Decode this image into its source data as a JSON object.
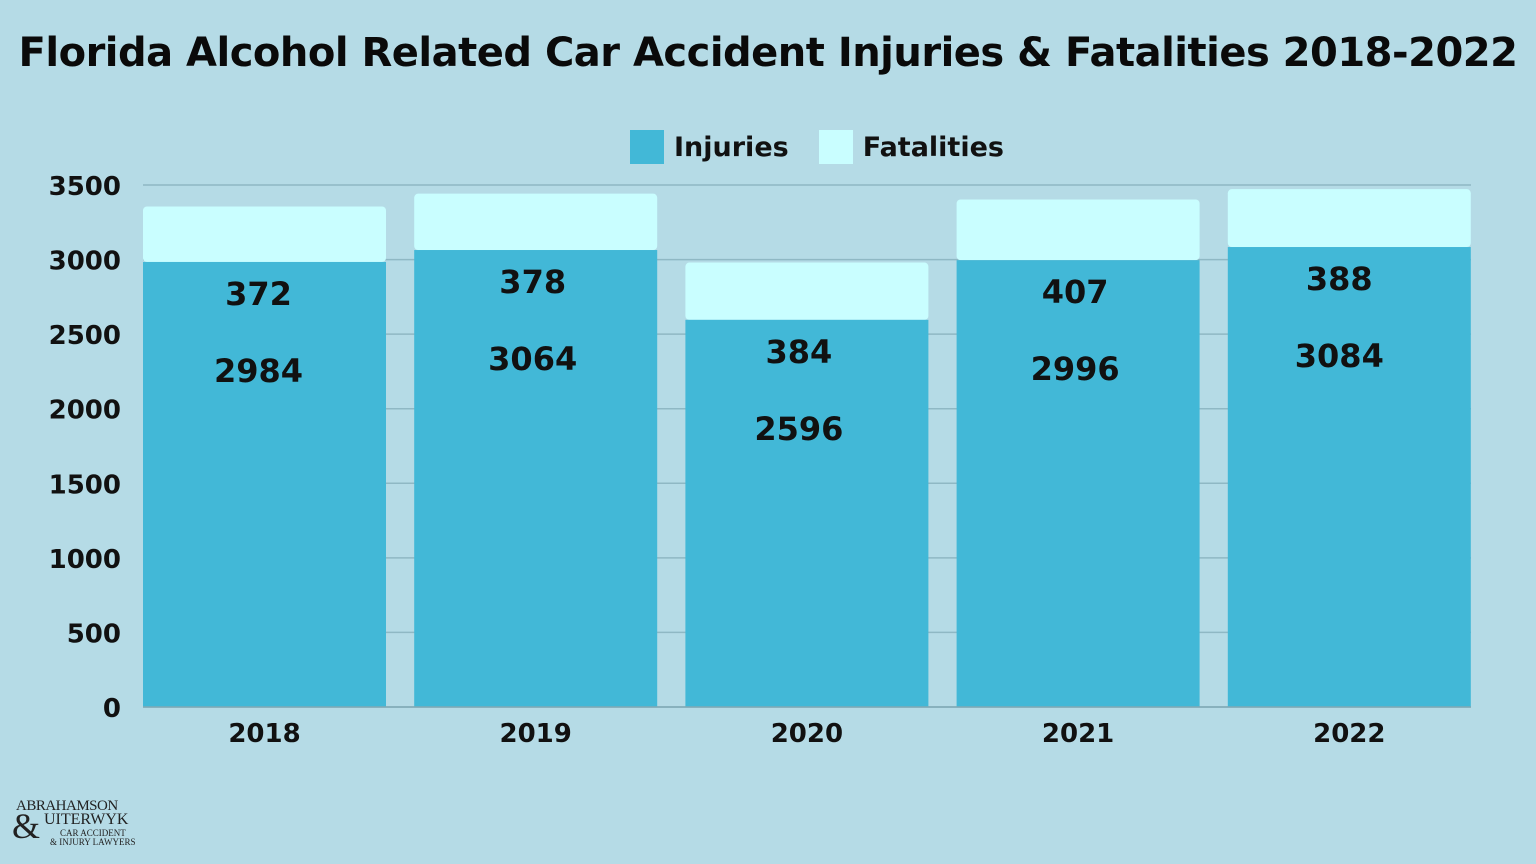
{
  "chart_data": {
    "type": "bar",
    "stacked": true,
    "title": "Florida Alcohol Related Car Accident Injuries & Fatalities 2018-2022",
    "categories": [
      "2018",
      "2019",
      "2020",
      "2021",
      "2022"
    ],
    "series": [
      {
        "name": "Injuries",
        "values": [
          2984,
          3064,
          2596,
          2996,
          3084
        ],
        "color": "#42b8d7"
      },
      {
        "name": "Fatalities",
        "values": [
          372,
          378,
          384,
          407,
          388
        ],
        "color": "#c9feff"
      }
    ],
    "ylim": [
      0,
      3500
    ],
    "yticks": [
      "0",
      "500",
      "1000",
      "1500",
      "2000",
      "2500",
      "3000",
      "3500"
    ],
    "grid": true,
    "legend": "top-center",
    "xlabel": "",
    "ylabel": ""
  },
  "logo": {
    "line1": "ABRAHAMSON",
    "line2": "UITERWYK",
    "line3": "CAR ACCIDENT",
    "line4": "& INJURY LAWYERS"
  },
  "background": "#b5dbe6"
}
